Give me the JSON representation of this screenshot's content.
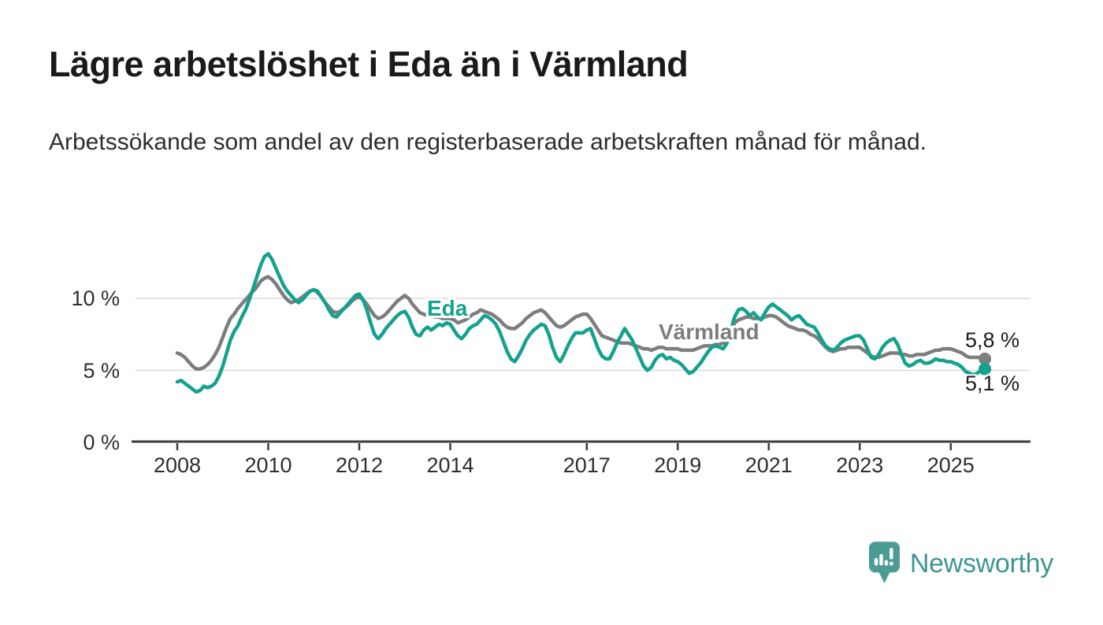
{
  "header": {
    "title": "Lägre arbetslöshet i Eda än i Värmland",
    "subtitle": "Arbetssökande som andel av den registerbaserade arbetskraften månad för månad."
  },
  "chart_data": {
    "type": "line",
    "unit": "%",
    "frequency": "monthly",
    "start": "2008-01",
    "end": "2025-10",
    "ylim": [
      0,
      14
    ],
    "grid": true,
    "axis_color": "#3d3d3d",
    "gridline_color": "#d9d9d9",
    "y_ticks": [
      {
        "value": 10,
        "label": "10 %"
      },
      {
        "value": 5,
        "label": "5 %"
      },
      {
        "value": 0,
        "label": "0 %"
      }
    ],
    "x_ticks": [
      {
        "year": 2008,
        "label": "2008"
      },
      {
        "year": 2010,
        "label": "2010"
      },
      {
        "year": 2012,
        "label": "2012"
      },
      {
        "year": 2014,
        "label": "2014"
      },
      {
        "year": 2017,
        "label": "2017"
      },
      {
        "year": 2019,
        "label": "2019"
      },
      {
        "year": 2021,
        "label": "2021"
      },
      {
        "year": 2023,
        "label": "2023"
      },
      {
        "year": 2025,
        "label": "2025"
      }
    ],
    "series": [
      {
        "name": "Värmland",
        "color": "#7d7d7d",
        "end_label": "5,8 %",
        "end_value": 5.8,
        "values": [
          6.2,
          6.1,
          5.9,
          5.6,
          5.3,
          5.1,
          5.1,
          5.2,
          5.4,
          5.7,
          6.1,
          6.6,
          7.3,
          8.0,
          8.6,
          8.9,
          9.3,
          9.6,
          9.9,
          10.2,
          10.5,
          10.8,
          11.2,
          11.4,
          11.5,
          11.3,
          11.0,
          10.6,
          10.2,
          9.9,
          9.7,
          9.8,
          9.9,
          10.1,
          10.3,
          10.5,
          10.6,
          10.4,
          10.1,
          9.7,
          9.4,
          9.1,
          9.0,
          9.1,
          9.3,
          9.5,
          9.8,
          10.0,
          10.1,
          9.9,
          9.6,
          9.2,
          8.8,
          8.6,
          8.7,
          8.9,
          9.2,
          9.5,
          9.8,
          10.0,
          10.2,
          10.0,
          9.6,
          9.3,
          9.0,
          8.9,
          8.8,
          8.8,
          8.7,
          8.7,
          8.6,
          8.6,
          8.6,
          8.5,
          8.3,
          8.4,
          8.5,
          8.7,
          8.9,
          9.0,
          9.2,
          9.1,
          9.0,
          8.9,
          8.7,
          8.5,
          8.2,
          8.0,
          7.9,
          7.9,
          8.1,
          8.3,
          8.6,
          8.8,
          9.0,
          9.1,
          9.2,
          9.0,
          8.7,
          8.4,
          8.1,
          8.0,
          8.1,
          8.3,
          8.5,
          8.7,
          8.8,
          8.9,
          8.9,
          8.6,
          8.2,
          7.8,
          7.4,
          7.3,
          7.2,
          7.1,
          7.0,
          6.9,
          6.9,
          6.9,
          6.8,
          6.7,
          6.6,
          6.5,
          6.5,
          6.4,
          6.5,
          6.6,
          6.6,
          6.5,
          6.5,
          6.5,
          6.5,
          6.4,
          6.4,
          6.4,
          6.4,
          6.5,
          6.6,
          6.7,
          6.7,
          6.7,
          6.8,
          6.8,
          6.9,
          7.0,
          7.7,
          8.3,
          8.5,
          8.6,
          8.7,
          8.7,
          8.6,
          8.6,
          8.6,
          8.7,
          8.8,
          8.8,
          8.7,
          8.5,
          8.3,
          8.1,
          8.0,
          7.9,
          7.8,
          7.8,
          7.7,
          7.5,
          7.4,
          7.2,
          6.9,
          6.6,
          6.4,
          6.3,
          6.4,
          6.5,
          6.5,
          6.6,
          6.6,
          6.6,
          6.6,
          6.4,
          6.2,
          6.0,
          5.9,
          5.9,
          6.0,
          6.1,
          6.2,
          6.2,
          6.2,
          6.1,
          6.1,
          6.0,
          6.0,
          6.1,
          6.1,
          6.1,
          6.2,
          6.3,
          6.4,
          6.4,
          6.5,
          6.5,
          6.5,
          6.4,
          6.3,
          6.2,
          6.0,
          5.9,
          5.9,
          5.9,
          5.9,
          5.8
        ]
      },
      {
        "name": "Eda",
        "color": "#13a28e",
        "end_label": "5,1 %",
        "end_value": 5.1,
        "values": [
          4.2,
          4.3,
          4.1,
          3.9,
          3.7,
          3.5,
          3.6,
          3.9,
          3.8,
          3.9,
          4.1,
          4.6,
          5.3,
          6.2,
          7.1,
          7.7,
          8.1,
          8.7,
          9.2,
          9.9,
          10.7,
          11.5,
          12.3,
          12.9,
          13.1,
          12.7,
          12.1,
          11.5,
          10.9,
          10.5,
          10.2,
          9.9,
          9.7,
          9.9,
          10.2,
          10.5,
          10.6,
          10.5,
          10.1,
          9.7,
          9.2,
          8.8,
          8.7,
          9.0,
          9.3,
          9.6,
          9.9,
          10.2,
          10.3,
          9.9,
          9.2,
          8.3,
          7.5,
          7.2,
          7.5,
          7.9,
          8.2,
          8.5,
          8.8,
          9.0,
          9.1,
          8.7,
          8.0,
          7.5,
          7.4,
          7.8,
          8.0,
          7.8,
          8.0,
          8.2,
          8.1,
          8.3,
          8.2,
          7.8,
          7.4,
          7.2,
          7.5,
          7.9,
          8.1,
          8.2,
          8.5,
          8.8,
          8.7,
          8.5,
          8.2,
          7.7,
          7.0,
          6.3,
          5.8,
          5.6,
          6.0,
          6.5,
          7.1,
          7.5,
          7.8,
          8.0,
          8.2,
          8.1,
          7.5,
          6.6,
          5.9,
          5.6,
          6.1,
          6.7,
          7.2,
          7.6,
          7.6,
          7.6,
          7.8,
          7.9,
          7.2,
          6.5,
          6.0,
          5.8,
          5.8,
          6.3,
          6.9,
          7.4,
          7.9,
          7.5,
          7.1,
          6.5,
          5.9,
          5.3,
          5.0,
          5.2,
          5.7,
          6.0,
          6.1,
          5.8,
          5.9,
          5.7,
          5.6,
          5.4,
          5.1,
          4.8,
          4.9,
          5.2,
          5.5,
          5.9,
          6.3,
          6.6,
          6.7,
          6.6,
          6.5,
          6.9,
          7.8,
          8.7,
          9.2,
          9.3,
          9.1,
          8.8,
          9.0,
          8.7,
          8.5,
          9.0,
          9.4,
          9.6,
          9.4,
          9.2,
          9.0,
          8.8,
          8.5,
          8.7,
          8.8,
          8.5,
          8.2,
          8.1,
          8.0,
          7.6,
          7.1,
          6.7,
          6.5,
          6.4,
          6.6,
          6.9,
          7.1,
          7.2,
          7.3,
          7.4,
          7.4,
          7.1,
          6.5,
          5.9,
          5.8,
          6.1,
          6.6,
          6.9,
          7.1,
          7.2,
          6.8,
          6.1,
          5.5,
          5.3,
          5.4,
          5.6,
          5.7,
          5.5,
          5.5,
          5.6,
          5.8,
          5.7,
          5.7,
          5.6,
          5.6,
          5.5,
          5.4,
          5.2,
          4.9,
          4.8,
          4.7,
          4.8,
          5.0,
          5.1
        ]
      }
    ]
  },
  "branding": {
    "logo_text": "Newsworthy",
    "logo_color": "#3f968f",
    "logo_icon": "bar-chart-speech-bubble-icon"
  }
}
